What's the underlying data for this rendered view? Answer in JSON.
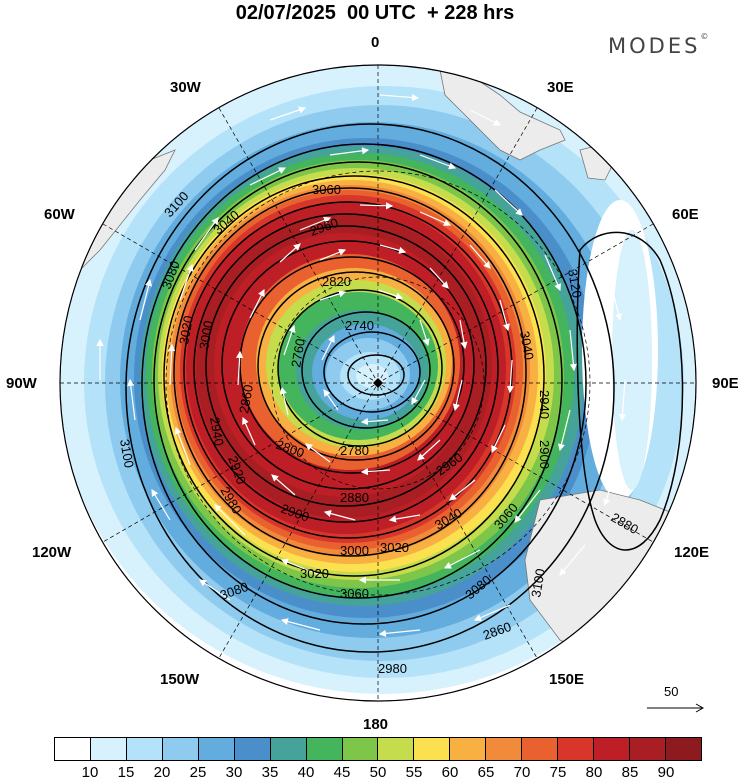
{
  "header": {
    "title": "02/07/2025  00 UTC  + 228 hrs"
  },
  "brand": {
    "name": "MODES",
    "mark": "©"
  },
  "map": {
    "projection": "south-polar-stereographic",
    "longitude_labels": [
      "0",
      "30E",
      "60E",
      "90E",
      "120E",
      "150E",
      "180",
      "150W",
      "120W",
      "90W",
      "60W",
      "30W"
    ],
    "contour_labels": [
      "3100",
      "3080",
      "3060",
      "3040",
      "3020",
      "3000",
      "2980",
      "2960",
      "2940",
      "2920",
      "2900",
      "2880",
      "2860",
      "2820",
      "2800",
      "2780",
      "2760",
      "2740",
      "3120",
      "3100",
      "3080",
      "3060",
      "3000",
      "3020",
      "3040",
      "3080",
      "3100",
      "3060",
      "3040",
      "3020",
      "2940",
      "2960",
      "2900",
      "2880",
      "2860",
      "2980"
    ],
    "colors": {
      "ocean": "#ffffff",
      "land": "#ececec",
      "contour": "#000000",
      "vector": "#ffffff"
    },
    "reference_vector": {
      "value": "50"
    }
  },
  "colorbar": {
    "ticks": [
      "10",
      "15",
      "20",
      "25",
      "30",
      "35",
      "40",
      "45",
      "50",
      "55",
      "60",
      "65",
      "70",
      "75",
      "80",
      "85",
      "90"
    ],
    "colors": [
      "#ffffff",
      "#d7f1fd",
      "#b4e2f8",
      "#8ecbef",
      "#62acde",
      "#4b8fca",
      "#45a39a",
      "#44b45d",
      "#7dc64a",
      "#c5dc4d",
      "#fbe04f",
      "#f8b043",
      "#f18a3a",
      "#e9612f",
      "#d8362a",
      "#be1f26",
      "#a81e22",
      "#8c1a1e"
    ]
  }
}
